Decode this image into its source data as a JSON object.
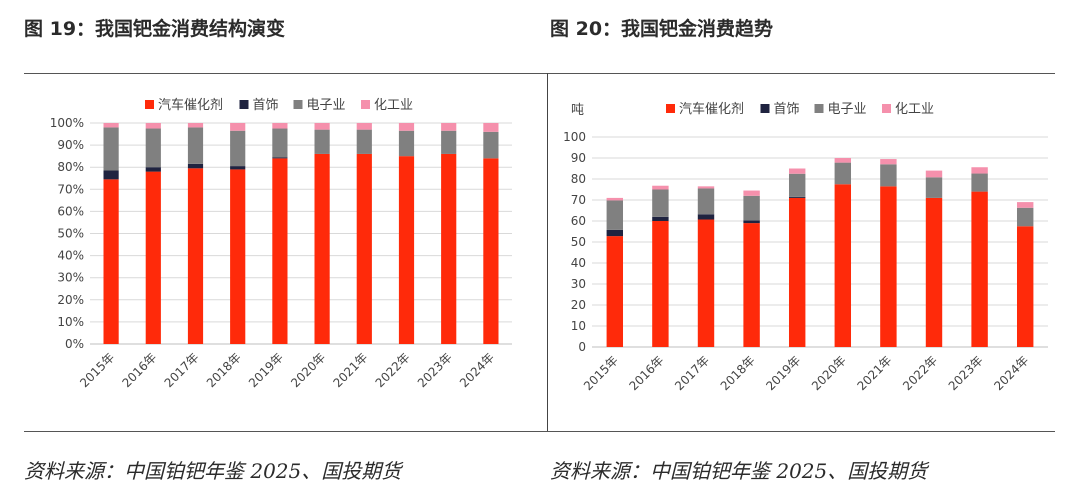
{
  "left_title": "图 19：我国钯金消费结构演变",
  "right_title": "图 20：我国钯金消费趋势",
  "left_source": "资料来源：中国铂钯年鉴 2025、国投期货",
  "right_source": "资料来源：中国铂钯年鉴 2025、国投期货",
  "colors": {
    "automotive": "#ff2a0a",
    "jewelry": "#1f2340",
    "electronics": "#808080",
    "chemical": "#f590ac"
  },
  "chart_data": [
    {
      "type": "bar",
      "stacked": true,
      "title": "",
      "ylabel": "",
      "ylim": [
        0,
        100
      ],
      "y_ticks": [
        "0%",
        "10%",
        "20%",
        "30%",
        "40%",
        "50%",
        "60%",
        "70%",
        "80%",
        "90%",
        "100%"
      ],
      "legend_position": "top",
      "grid": true,
      "categories": [
        "2015年",
        "2016年",
        "2017年",
        "2018年",
        "2019年",
        "2020年",
        "2021年",
        "2022年",
        "2023年",
        "2024年"
      ],
      "series": [
        {
          "name": "汽车催化剂",
          "values": [
            74.5,
            78,
            79.5,
            79,
            84,
            86,
            86,
            85,
            86,
            84
          ]
        },
        {
          "name": "首饰",
          "values": [
            4,
            2,
            2,
            1.5,
            0.5,
            0,
            0,
            0,
            0,
            0
          ]
        },
        {
          "name": "电子业",
          "values": [
            19.5,
            17.5,
            16.5,
            16,
            13,
            11,
            11,
            11.5,
            10.5,
            12
          ]
        },
        {
          "name": "化工业",
          "values": [
            2,
            2.5,
            2,
            3.5,
            2.5,
            3,
            3,
            3.5,
            3.5,
            4
          ]
        }
      ]
    },
    {
      "type": "bar",
      "stacked": true,
      "title": "",
      "ylabel": "吨",
      "ylim": [
        0,
        100
      ],
      "y_ticks": [
        "0",
        "10",
        "20",
        "30",
        "40",
        "50",
        "60",
        "70",
        "80",
        "90",
        "100"
      ],
      "legend_position": "top",
      "grid": true,
      "categories": [
        "2015年",
        "2016年",
        "2017年",
        "2018年",
        "2019年",
        "2020年",
        "2021年",
        "2022年",
        "2023年",
        "2024年"
      ],
      "series": [
        {
          "name": "汽车催化剂",
          "values": [
            52.8,
            60,
            60.7,
            59,
            71,
            77.5,
            76.5,
            71,
            74,
            57.5
          ]
        },
        {
          "name": "首饰",
          "values": [
            3,
            2,
            2.5,
            1.3,
            0.5,
            0,
            0,
            0,
            0,
            0
          ]
        },
        {
          "name": "电子业",
          "values": [
            14,
            13,
            12.3,
            11.7,
            11,
            10.3,
            10.5,
            9.8,
            8.6,
            8.8
          ]
        },
        {
          "name": "化工业",
          "values": [
            1.2,
            1.8,
            1,
            2.5,
            2.5,
            2.2,
            2.5,
            3.2,
            3,
            2.7
          ]
        }
      ]
    }
  ]
}
